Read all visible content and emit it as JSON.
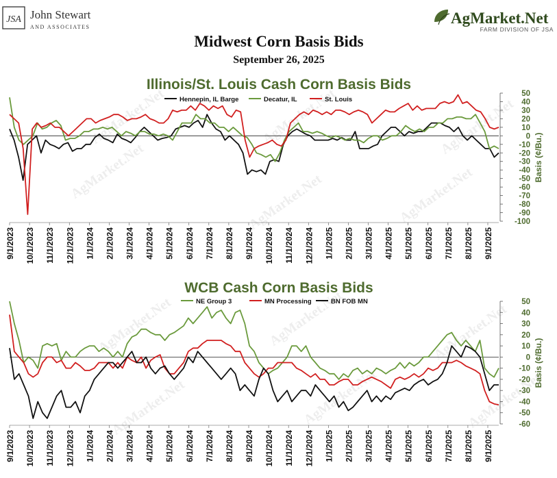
{
  "header": {
    "left_logo_main": "John Stewart",
    "left_logo_sub": "AND ASSOCIATES",
    "left_logo_mark": "JSA",
    "right_logo_main": "AgMarket.Net",
    "right_logo_sub": "FARM DIVISION OF JSA"
  },
  "title": "Midwest Corn Basis Bids",
  "date": "September 26, 2025",
  "watermark_text": "AgMarket.Net",
  "colors": {
    "green_title": "#4e6b2e",
    "green_line": "#6a9a3c",
    "red_line": "#d11f1f",
    "black_line": "#111111"
  },
  "chart_data": [
    {
      "type": "line",
      "title": "Illinois/St. Louis Cash Corn Basis Bids",
      "ylabel": "Basis (¢/Bu.)",
      "ylim": [
        -100,
        50
      ],
      "yticks": [
        50,
        40,
        30,
        20,
        10,
        0,
        -10,
        -20,
        -30,
        -40,
        -50,
        -60,
        -70,
        -80,
        -90,
        -100
      ],
      "x_tick_labels": [
        "9/1/2023",
        "10/1/2023",
        "11/1/2023",
        "12/1/2023",
        "1/1/2024",
        "2/1/2024",
        "3/1/2024",
        "4/1/2024",
        "5/1/2024",
        "6/1/2024",
        "7/1/2024",
        "8/1/2024",
        "9/1/2024",
        "10/1/2024",
        "11/1/2024",
        "12/1/2024",
        "1/1/2025",
        "2/1/2025",
        "3/1/2025",
        "4/1/2025",
        "5/1/2025",
        "6/1/2025",
        "7/1/2025",
        "8/1/2025",
        "9/1/2025"
      ],
      "legend_position": "top-center",
      "series": [
        {
          "name": "Hennepin, IL Barge",
          "color": "#111111",
          "values": [
            8,
            -5,
            -25,
            -52,
            -10,
            -5,
            0,
            -20,
            -5,
            -10,
            -12,
            -15,
            -10,
            -8,
            -18,
            -15,
            -15,
            -10,
            -10,
            -2,
            2,
            -3,
            -5,
            -8,
            2,
            -3,
            -5,
            -8,
            -2,
            5,
            10,
            5,
            0,
            -5,
            -3,
            -2,
            0,
            8,
            10,
            12,
            10,
            15,
            18,
            10,
            25,
            15,
            8,
            5,
            -5,
            0,
            -5,
            -10,
            -20,
            -45,
            -40,
            -42,
            -40,
            -45,
            -30,
            -28,
            -30,
            -10,
            0,
            5,
            8,
            5,
            2,
            0,
            -5,
            -5,
            -5,
            -5,
            -3,
            -5,
            -2,
            -5,
            -5,
            5,
            -15,
            -15,
            -15,
            -12,
            -10,
            0,
            5,
            10,
            10,
            5,
            0,
            5,
            3,
            5,
            5,
            10,
            15,
            15,
            15,
            12,
            10,
            5,
            10,
            0,
            -5,
            0,
            -5,
            -10,
            -15,
            -15,
            -25,
            -20
          ]
        },
        {
          "name": "Decatur, IL",
          "color": "#6a9a3c",
          "values": [
            45,
            10,
            -5,
            -10,
            -5,
            0,
            15,
            8,
            10,
            15,
            18,
            12,
            -5,
            -3,
            -3,
            0,
            5,
            5,
            8,
            8,
            10,
            8,
            10,
            5,
            0,
            5,
            3,
            0,
            5,
            5,
            2,
            2,
            0,
            2,
            0,
            -5,
            5,
            15,
            15,
            15,
            25,
            20,
            20,
            15,
            15,
            10,
            10,
            5,
            10,
            5,
            0,
            -2,
            -10,
            -20,
            -22,
            -25,
            -22,
            -30,
            -20,
            -5,
            5,
            10,
            15,
            5,
            5,
            3,
            5,
            3,
            0,
            -2,
            0,
            -2,
            -5,
            -3,
            -5,
            -5,
            -8,
            -3,
            0,
            0,
            -5,
            -3,
            0,
            0,
            5,
            12,
            8,
            5,
            8,
            5,
            10,
            10,
            15,
            15,
            20,
            20,
            22,
            22,
            20,
            20,
            25,
            15,
            5,
            -15,
            -12,
            -15
          ]
        },
        {
          "name": "St. Louis",
          "color": "#d11f1f",
          "values": [
            25,
            20,
            15,
            -15,
            -92,
            8,
            15,
            10,
            12,
            15,
            10,
            10,
            5,
            0,
            5,
            10,
            15,
            20,
            20,
            15,
            18,
            20,
            22,
            25,
            25,
            22,
            18,
            20,
            20,
            22,
            25,
            20,
            18,
            15,
            15,
            20,
            30,
            28,
            30,
            30,
            35,
            30,
            38,
            35,
            30,
            35,
            32,
            35,
            25,
            22,
            30,
            28,
            -5,
            -25,
            -15,
            -12,
            -10,
            -8,
            -5,
            -10,
            -12,
            -5,
            15,
            20,
            25,
            28,
            25,
            30,
            28,
            25,
            28,
            25,
            30,
            30,
            28,
            25,
            28,
            30,
            28,
            25,
            15,
            20,
            25,
            30,
            28,
            28,
            32,
            35,
            38,
            30,
            35,
            30,
            32,
            32,
            32,
            38,
            40,
            38,
            40,
            48,
            38,
            40,
            35,
            30,
            28,
            20,
            10,
            8,
            10
          ]
        }
      ]
    },
    {
      "type": "line",
      "title": "WCB Cash Corn Basis Bids",
      "ylabel": "Basis (¢/Bu.)",
      "ylim": [
        -60,
        50
      ],
      "yticks": [
        50,
        40,
        30,
        20,
        10,
        0,
        -10,
        -20,
        -30,
        -40,
        -50,
        -60
      ],
      "x_tick_labels": [
        "9/1/2023",
        "10/1/2023",
        "11/1/2023",
        "12/1/2023",
        "1/1/2024",
        "2/1/2024",
        "3/1/2024",
        "4/1/2024",
        "5/1/2024",
        "6/1/2024",
        "7/1/2024",
        "8/1/2024",
        "9/1/2024",
        "10/1/2024",
        "11/1/2024",
        "12/1/2024",
        "1/1/2025",
        "2/1/2025",
        "3/1/2025",
        "4/1/2025",
        "5/1/2025",
        "6/1/2025",
        "7/1/2025",
        "8/1/2025",
        "9/1/2025"
      ],
      "legend_position": "top-center",
      "series": [
        {
          "name": "NE Group 3",
          "color": "#6a9a3c",
          "values": [
            50,
            30,
            15,
            -5,
            0,
            -3,
            -10,
            10,
            12,
            10,
            12,
            -3,
            5,
            0,
            0,
            5,
            8,
            10,
            10,
            5,
            8,
            5,
            0,
            5,
            0,
            12,
            18,
            20,
            25,
            25,
            22,
            20,
            20,
            15,
            20,
            22,
            25,
            28,
            35,
            30,
            35,
            40,
            45,
            35,
            40,
            42,
            35,
            30,
            40,
            42,
            30,
            10,
            5,
            -5,
            -10,
            -15,
            -12,
            -10,
            -5,
            0,
            10,
            10,
            5,
            10,
            0,
            -5,
            -10,
            -12,
            -15,
            -15,
            -20,
            -15,
            -18,
            -12,
            -10,
            -15,
            -12,
            -15,
            -10,
            -12,
            -15,
            -12,
            -10,
            -5,
            -10,
            -5,
            -8,
            -5,
            0,
            0,
            5,
            10,
            15,
            20,
            22,
            15,
            10,
            15,
            10,
            5,
            15,
            -10,
            -15,
            -18,
            -10
          ]
        },
        {
          "name": "MN Processing",
          "color": "#d11f1f",
          "values": [
            38,
            5,
            0,
            -5,
            -15,
            -18,
            -15,
            -5,
            0,
            0,
            -5,
            -3,
            -10,
            -10,
            -5,
            -8,
            -12,
            -12,
            -10,
            -5,
            -5,
            -5,
            -10,
            -5,
            -10,
            0,
            -3,
            -5,
            0,
            -10,
            -3,
            0,
            2,
            -10,
            -15,
            -15,
            -10,
            -5,
            5,
            8,
            8,
            12,
            15,
            15,
            15,
            15,
            12,
            10,
            5,
            5,
            -5,
            -10,
            -15,
            -18,
            -15,
            -10,
            -10,
            -5,
            -5,
            -5,
            -5,
            -10,
            -12,
            -15,
            -18,
            -15,
            -20,
            -20,
            -25,
            -25,
            -22,
            -20,
            -20,
            -25,
            -25,
            -22,
            -20,
            -18,
            -20,
            -22,
            -25,
            -28,
            -20,
            -18,
            -20,
            -18,
            -15,
            -18,
            -15,
            -10,
            -12,
            -10,
            -5,
            -5,
            -5,
            -3,
            -5,
            -8,
            -10,
            -12,
            -15,
            -30,
            -40,
            -42,
            -43
          ]
        },
        {
          "name": "BN FOB MN",
          "color": "#111111",
          "values": [
            8,
            -20,
            -15,
            -25,
            -35,
            -55,
            -40,
            -50,
            -55,
            -45,
            -35,
            -30,
            -45,
            -45,
            -40,
            -50,
            -35,
            -30,
            -20,
            -15,
            -10,
            -5,
            -5,
            -10,
            -5,
            0,
            5,
            -5,
            -5,
            0,
            -10,
            -15,
            -10,
            -8,
            -15,
            -20,
            -15,
            -10,
            0,
            -5,
            5,
            0,
            -5,
            -10,
            -15,
            -20,
            -15,
            -10,
            -15,
            -30,
            -25,
            -30,
            -35,
            -20,
            -10,
            -15,
            -30,
            -40,
            -35,
            -30,
            -40,
            -35,
            -30,
            -30,
            -35,
            -25,
            -30,
            -35,
            -40,
            -35,
            -45,
            -40,
            -48,
            -45,
            -40,
            -35,
            -30,
            -40,
            -35,
            -40,
            -35,
            -38,
            -32,
            -30,
            -28,
            -30,
            -25,
            -22,
            -20,
            -25,
            -22,
            -20,
            -15,
            -5,
            10,
            5,
            0,
            10,
            8,
            5,
            0,
            -15,
            -30,
            -25,
            -25
          ]
        }
      ]
    }
  ]
}
